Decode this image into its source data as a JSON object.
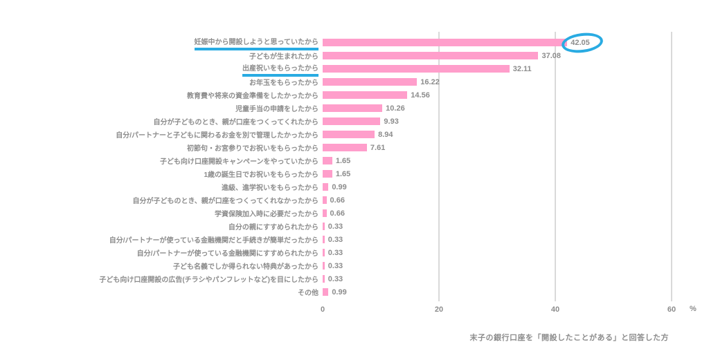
{
  "chart_data": {
    "type": "bar",
    "orientation": "horizontal",
    "title": "",
    "xlabel": "",
    "ylabel": "",
    "unit": "%",
    "xlim": [
      0,
      60
    ],
    "xticks": [
      0,
      20,
      40,
      60
    ],
    "grid": "vertical-light-gray",
    "legend": "none",
    "categories": [
      "妊娠中から開設しようと思っていたから",
      "子どもが生まれたから",
      "出産祝いをもらったから",
      "お年玉をもらったから",
      "教育費や将来の資金準備をしたかったから",
      "児童手当の申請をしたから",
      "自分が子どものとき、親が口座をつくってくれたから",
      "自分/パートナーと子どもに関わるお金を別で管理したかったから",
      "初節句・お宮参りでお祝いをもらったから",
      "子ども向け口座開設キャンペーンをやっていたから",
      "1歳の誕生日でお祝いをもらったから",
      "進級、進学祝いをもらったから",
      "自分が子どものとき、親が口座をつくってくれなかったから",
      "学資保険加入時に必要だったから",
      "自分の親にすすめられたから",
      "自分/パートナーが使っている金融機関だと手続きが簡単だったから",
      "自分/パートナーが使っている金融機関にすすめられたから",
      "子ども名義でしか得られない特典があったから",
      "子ども向け口座開設の広告(チラシやパンフレットなど)を目にしたから",
      "その他"
    ],
    "values": [
      42.05,
      37.08,
      32.11,
      16.22,
      14.56,
      10.26,
      9.93,
      8.94,
      7.61,
      1.65,
      1.65,
      0.99,
      0.66,
      0.66,
      0.33,
      0.33,
      0.33,
      0.33,
      0.33,
      0.99
    ],
    "annotations": {
      "underlined_category_indexes": [
        0,
        2
      ],
      "circled_value_index": 0,
      "circle_style": "blue-ellipse-outline",
      "underline_style": "blue-thick-underline"
    },
    "caption": "末子の銀行口座を「開設したことがある」と回答した方",
    "colors": {
      "bar": "#ff9ecb",
      "highlight": "#29abe2",
      "text": "#8c8c8c",
      "gridline": "#d9d9d9",
      "background": "#ffffff"
    }
  }
}
